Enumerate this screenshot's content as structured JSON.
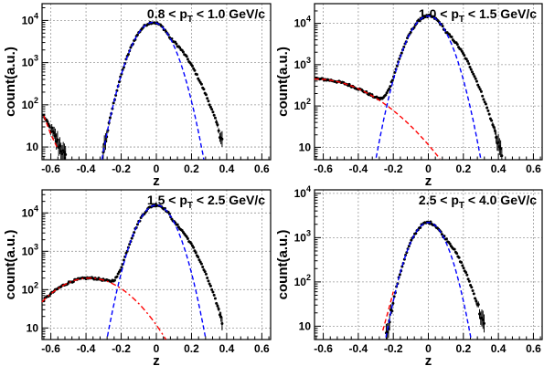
{
  "chart_data": [
    {
      "type": "scatter",
      "title": "0.8 < p_T < 1.0 GeV/c",
      "title_parts": {
        "lo": "0.8",
        "hi": "1.0 GeV/c"
      },
      "xlabel": "z",
      "ylabel": "count(a.u.)",
      "xlim": [
        -0.65,
        0.65
      ],
      "ylim": [
        5,
        25000
      ],
      "yscale": "log",
      "xticks": [
        "-0.6",
        "-0.4",
        "-0.2",
        "0",
        "0.2",
        "0.4",
        "0.6"
      ],
      "yticks": [
        "10",
        "10^2",
        "10^3",
        "10^4"
      ],
      "grid": true,
      "data": {
        "peak_z": -0.02,
        "peak_count": 9000,
        "sigma": 0.075,
        "right_tail_start": 0.08,
        "right_tail_sigma": 0.115,
        "x_range": [
          -0.64,
          0.38
        ]
      },
      "series": [
        {
          "name": "",
          "color": "#0000ff",
          "style": "dashed",
          "kind": "gaussian",
          "mean": -0.02,
          "sigma": 0.075,
          "amp": 9000
        },
        {
          "name": "",
          "color": "#ff0000",
          "style": "dashed",
          "kind": "falling",
          "x_range": [
            -0.64,
            -0.55
          ],
          "values": [
            [
              -0.64,
              55
            ],
            [
              -0.6,
              20
            ],
            [
              -0.56,
              9
            ]
          ]
        }
      ]
    },
    {
      "type": "scatter",
      "title": "1.0 < p_T < 1.5 GeV/c",
      "title_parts": {
        "lo": "1.0",
        "hi": "1.5 GeV/c"
      },
      "xlabel": "z",
      "ylabel": "count(a.u.)",
      "xlim": [
        -0.65,
        0.65
      ],
      "ylim": [
        5,
        30000
      ],
      "yscale": "log",
      "xticks": [
        "-0.6",
        "-0.4",
        "-0.2",
        "0",
        "0.2",
        "0.4",
        "0.6"
      ],
      "yticks": [
        "10",
        "10^2",
        "10^3",
        "10^4"
      ],
      "grid": true,
      "data": {
        "peak_z": 0.0,
        "peak_count": 15000,
        "sigma": 0.075,
        "right_tail_start": 0.1,
        "right_tail_sigma": 0.11,
        "x_range": [
          -0.64,
          0.42
        ],
        "bg_amp": 450,
        "bg_mean": -0.65,
        "bg_sigma": 0.24
      },
      "series": [
        {
          "name": "",
          "color": "#0000ff",
          "style": "dashed",
          "kind": "gaussian",
          "mean": 0.0,
          "sigma": 0.075,
          "amp": 15000
        },
        {
          "name": "",
          "color": "#ff0000",
          "style": "dashed",
          "kind": "gaussian",
          "mean": -0.65,
          "sigma": 0.24,
          "amp": 450
        }
      ]
    },
    {
      "type": "scatter",
      "title": "1.5 < p_T < 2.5 GeV/c",
      "title_parts": {
        "lo": "1.5",
        "hi": "2.5 GeV/c"
      },
      "xlabel": "z",
      "ylabel": "count(a.u.)",
      "xlim": [
        -0.65,
        0.65
      ],
      "ylim": [
        5,
        40000
      ],
      "yscale": "log",
      "xticks": [
        "-0.6",
        "-0.4",
        "-0.2",
        "0",
        "0.2",
        "0.4",
        "0.6"
      ],
      "yticks": [
        "10",
        "10^2",
        "10^3",
        "10^4"
      ],
      "grid": true,
      "data": {
        "peak_z": 0.0,
        "peak_count": 16000,
        "sigma": 0.07,
        "right_tail_start": 0.1,
        "right_tail_sigma": 0.105,
        "x_range": [
          -0.64,
          0.38
        ],
        "bg_amp": 200,
        "bg_mean": -0.38,
        "bg_sigma": 0.16
      },
      "series": [
        {
          "name": "",
          "color": "#0000ff",
          "style": "dashed",
          "kind": "gaussian",
          "mean": 0.0,
          "sigma": 0.07,
          "amp": 16000
        },
        {
          "name": "",
          "color": "#ff0000",
          "style": "dashdot",
          "kind": "gaussian",
          "mean": -0.38,
          "sigma": 0.16,
          "amp": 200
        }
      ]
    },
    {
      "type": "scatter",
      "title": "2.5 < p_T < 4.0 GeV/c",
      "title_parts": {
        "lo": "2.5",
        "hi": "4.0 GeV/c"
      },
      "xlabel": "z",
      "ylabel": "count(a.u.)",
      "xlim": [
        -0.65,
        0.65
      ],
      "ylim": [
        5,
        12000
      ],
      "yscale": "log",
      "xticks": [
        "-0.6",
        "-0.4",
        "-0.2",
        "0",
        "0.2",
        "0.4",
        "0.6"
      ],
      "yticks": [
        "10",
        "10^2",
        "10^3",
        "10^4"
      ],
      "grid": true,
      "data": {
        "peak_z": 0.0,
        "peak_count": 2200,
        "sigma": 0.07,
        "right_tail_start": 0.08,
        "right_tail_sigma": 0.1,
        "x_range": [
          -0.26,
          0.32
        ]
      },
      "series": [
        {
          "name": "",
          "color": "#0000ff",
          "style": "dashed",
          "kind": "gaussian",
          "mean": 0.0,
          "sigma": 0.07,
          "amp": 2200
        },
        {
          "name": "",
          "color": "#ff0000",
          "style": "dashed",
          "kind": "falling",
          "values": [
            [
              -0.26,
              8
            ],
            [
              -0.22,
              30
            ],
            [
              -0.2,
              60
            ]
          ]
        }
      ]
    }
  ]
}
